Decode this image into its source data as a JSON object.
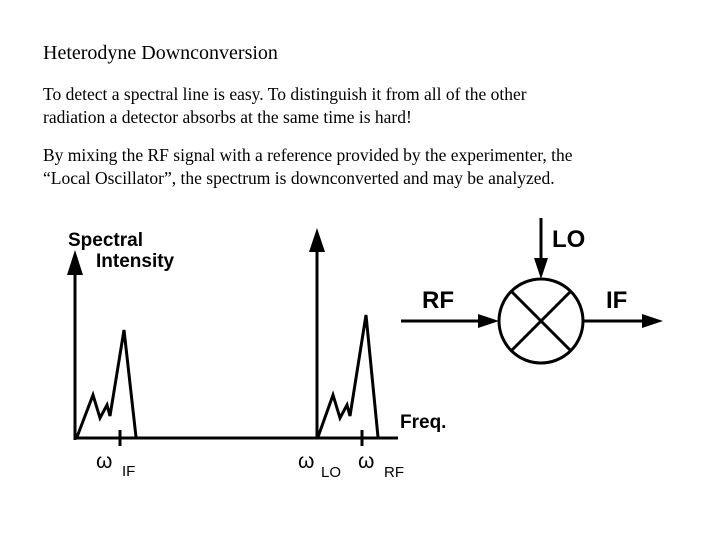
{
  "slide": {
    "title": "Heterodyne Downconversion",
    "paragraph1_line1": "To detect a spectral line is easy.  To distinguish it from all of the other",
    "paragraph1_line2": "radiation a detector absorbs at the same time is hard!",
    "paragraph2_line1": "By mixing the RF signal with a reference provided by the experimenter, the",
    "paragraph2_line2": "“Local Oscillator”, the spectrum is downconverted and may be analyzed."
  },
  "figure": {
    "y_axis_label_1": "Spectral",
    "y_axis_label_2": "Intensity",
    "x_axis_label": "Freq.",
    "omega_symbol": "ω",
    "sub_if": "IF",
    "sub_lo": "LO",
    "sub_rf": "RF"
  },
  "mixer": {
    "lo_label": "LO",
    "rf_label": "RF",
    "if_label": "IF"
  }
}
